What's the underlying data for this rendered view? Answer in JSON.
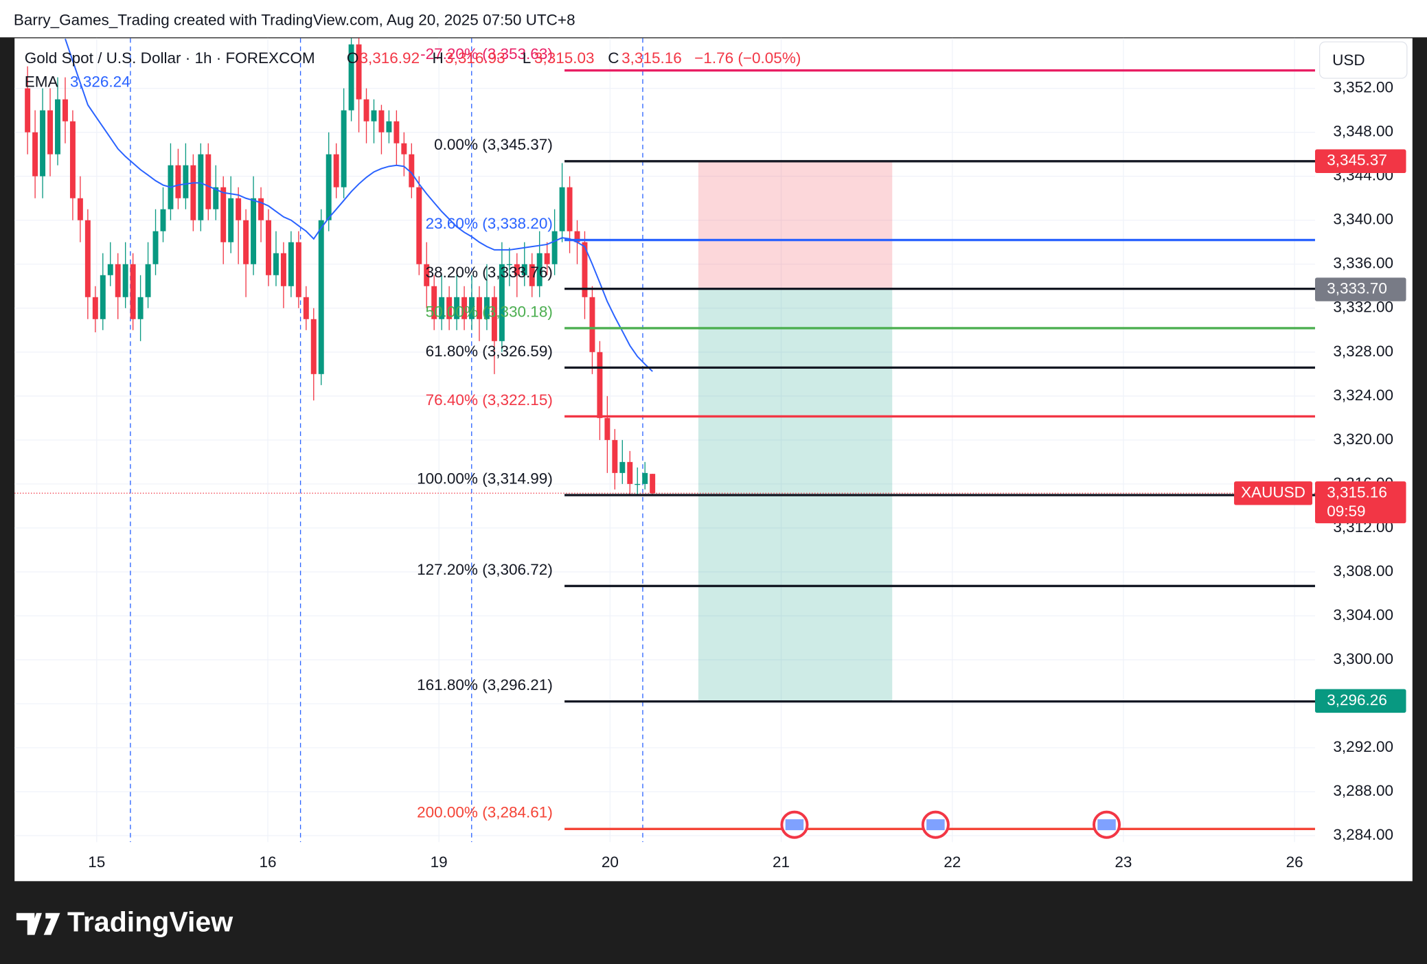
{
  "header": {
    "attribution": "Barry_Games_Trading created with TradingView.com, Aug 20, 2025 07:50 UTC+8",
    "symbol": "Gold Spot / U.S. Dollar · 1h · FOREXCOM",
    "o_label": "O",
    "open": "3,316.92",
    "h_label": "H",
    "high": "3,316.93",
    "l_label": "L",
    "low": "3,315.03",
    "c_label": "C",
    "close": "3,315.16",
    "change": "−1.76 (−0.05%)",
    "ema_label": "EMA",
    "ema_value": "3,326.24"
  },
  "chart_data": {
    "type": "candlestick",
    "currency": "USD",
    "symbol_tag": "XAUUSD",
    "countdown": "09:59",
    "grid": true,
    "colors": {
      "up": "#089981",
      "down": "#f23645",
      "ema": "#2962ff",
      "session": "#2962ff"
    },
    "xlim": [
      -0.48,
      7.12
    ],
    "ylim": [
      3283.42,
      3356.56
    ],
    "xticks": [
      {
        "value": 0,
        "label": "15"
      },
      {
        "value": 1,
        "label": "16"
      },
      {
        "value": 2,
        "label": "19"
      },
      {
        "value": 3,
        "label": "20"
      },
      {
        "value": 4,
        "label": "21"
      },
      {
        "value": 5,
        "label": "22"
      },
      {
        "value": 6,
        "label": "23"
      },
      {
        "value": 7,
        "label": "26"
      }
    ],
    "yticks": [
      {
        "value": 3284,
        "label": "3,284.00"
      },
      {
        "value": 3288,
        "label": "3,288.00"
      },
      {
        "value": 3292,
        "label": "3,292.00"
      },
      {
        "value": 3296,
        "label": "3,296.00"
      },
      {
        "value": 3300,
        "label": "3,300.00"
      },
      {
        "value": 3304,
        "label": "3,304.00"
      },
      {
        "value": 3308,
        "label": "3,308.00"
      },
      {
        "value": 3312,
        "label": "3,312.00"
      },
      {
        "value": 3316,
        "label": "3,316.00"
      },
      {
        "value": 3320,
        "label": "3,320.00"
      },
      {
        "value": 3324,
        "label": "3,324.00"
      },
      {
        "value": 3328,
        "label": "3,328.00"
      },
      {
        "value": 3332,
        "label": "3,332.00"
      },
      {
        "value": 3336,
        "label": "3,336.00"
      },
      {
        "value": 3340,
        "label": "3,340.00"
      },
      {
        "value": 3344,
        "label": "3,344.00"
      },
      {
        "value": 3348,
        "label": "3,348.00"
      },
      {
        "value": 3352,
        "label": "3,352.00"
      }
    ],
    "session_breaks": [
      0.197,
      1.191,
      2.191,
      3.191
    ],
    "x": [
      -0.404,
      -0.36,
      -0.316,
      -0.272,
      -0.228,
      -0.184,
      -0.14,
      -0.096,
      -0.052,
      -0.008,
      0.036,
      0.08,
      0.124,
      0.168,
      0.212,
      0.256,
      0.3,
      0.344,
      0.388,
      0.432,
      0.476,
      0.52,
      0.564,
      0.608,
      0.652,
      0.696,
      0.74,
      0.784,
      0.828,
      0.872,
      0.916,
      0.96,
      1.004,
      1.048,
      1.092,
      1.136,
      1.18,
      1.224,
      1.268,
      1.312,
      1.356,
      1.4,
      1.444,
      1.488,
      1.532,
      1.576,
      1.62,
      1.664,
      1.708,
      1.752,
      1.796,
      1.84,
      1.884,
      1.928,
      1.972,
      2.016,
      2.06,
      2.104,
      2.148,
      2.192,
      2.236,
      2.28,
      2.324,
      2.368,
      2.412,
      2.456,
      2.5,
      2.544,
      2.588,
      2.632,
      2.676,
      2.72,
      2.764,
      2.808,
      2.852,
      2.896,
      2.94,
      2.984,
      3.028,
      3.072,
      3.116,
      3.16,
      3.204,
      3.248
    ],
    "open": [
      3352,
      3348,
      3344,
      3350,
      3346,
      3351,
      3349,
      3342,
      3340,
      3333,
      3331,
      3335,
      3336,
      3333,
      3336,
      3331,
      3333,
      3336,
      3339,
      3341,
      3345,
      3342,
      3345,
      3340,
      3346,
      3341,
      3343,
      3338,
      3342,
      3340,
      3336,
      3342,
      3340,
      3335,
      3337,
      3334,
      3338,
      3333,
      3331,
      3326,
      3340,
      3346,
      3343,
      3350,
      3356,
      3351,
      3349,
      3350,
      3348,
      3349,
      3347,
      3346,
      3343,
      3336,
      3334,
      3331,
      3333,
      3331,
      3333,
      3331,
      3333,
      3331,
      3333,
      3329,
      3336,
      3336,
      3335,
      3336,
      3334,
      3337,
      3336,
      3339,
      3343,
      3339,
      3338,
      3333,
      3328,
      3322,
      3320,
      3317,
      3318,
      3316,
      3316,
      3316.92
    ],
    "high": [
      3354,
      3350,
      3352,
      3352,
      3353,
      3353,
      3350,
      3344,
      3341,
      3334,
      3337,
      3338,
      3337,
      3338,
      3337,
      3335,
      3338,
      3341,
      3343,
      3347,
      3346.5,
      3347,
      3346,
      3347,
      3347,
      3345,
      3344,
      3344,
      3343,
      3341,
      3344,
      3343,
      3341,
      3339,
      3338,
      3339,
      3339,
      3334,
      3332,
      3341,
      3348,
      3347,
      3352,
      3357,
      3357,
      3352,
      3351,
      3350.5,
      3350,
      3350,
      3348,
      3347,
      3344,
      3338,
      3335,
      3335,
      3334,
      3335,
      3334,
      3335,
      3334,
      3336,
      3334,
      3338,
      3337.5,
      3337,
      3338,
      3337,
      3339,
      3338,
      3341,
      3345.2,
      3344,
      3340,
      3339,
      3334,
      3329,
      3324,
      3321,
      3320,
      3319,
      3317.5,
      3318,
      3316.93
    ],
    "low": [
      3346,
      3342,
      3342,
      3344,
      3345,
      3347,
      3340,
      3338,
      3331,
      3329.8,
      3330,
      3334,
      3331,
      3332,
      3330,
      3329,
      3332,
      3335,
      3338,
      3340,
      3341,
      3341,
      3339,
      3339,
      3340,
      3340,
      3336,
      3337,
      3336,
      3333,
      3335,
      3338,
      3334,
      3334,
      3332,
      3333,
      3332,
      3330,
      3323.6,
      3325,
      3339,
      3342,
      3342,
      3349,
      3348,
      3347,
      3347,
      3346,
      3347,
      3345,
      3344,
      3342,
      3335,
      3332,
      3330,
      3330,
      3330,
      3330,
      3330,
      3330,
      3329,
      3330,
      3326,
      3328,
      3334,
      3333,
      3334,
      3333,
      3333,
      3335,
      3335,
      3338,
      3337,
      3336,
      3331,
      3326,
      3320,
      3317,
      3315.5,
      3316,
      3315,
      3315,
      3315.5,
      3315.03
    ],
    "close": [
      3348,
      3344,
      3350,
      3346,
      3351,
      3349,
      3342,
      3340,
      3333,
      3331,
      3335,
      3336,
      3333,
      3336,
      3331,
      3333,
      3336,
      3339,
      3341,
      3345,
      3342,
      3345,
      3340,
      3346,
      3341,
      3343,
      3338,
      3342,
      3340,
      3336,
      3342,
      3340,
      3335,
      3337,
      3334,
      3338,
      3333,
      3331,
      3326,
      3340,
      3346,
      3343,
      3350,
      3356,
      3351,
      3349,
      3350,
      3348,
      3349,
      3347,
      3346,
      3343,
      3336,
      3334,
      3331,
      3333,
      3331,
      3333,
      3331,
      3333,
      3331,
      3333,
      3329,
      3336,
      3336,
      3335,
      3336,
      3334,
      3337,
      3336,
      3339,
      3343,
      3339,
      3338,
      3333,
      3328,
      3322,
      3320,
      3317,
      3318,
      3316,
      3316,
      3317,
      3315.16
    ],
    "ema": [
      null,
      null,
      null,
      null,
      null,
      3356.5,
      3354.5,
      3352.5,
      3350.5,
      3349.5,
      3348.5,
      3347.5,
      3346.5,
      3345.8,
      3345.2,
      3344.6,
      3344.1,
      3343.6,
      3343.2,
      3343,
      3343.2,
      3343.3,
      3343.4,
      3343.4,
      3343.1,
      3342.8,
      3342.5,
      3342.4,
      3342.3,
      3342,
      3341.8,
      3341.6,
      3341.3,
      3340.8,
      3340.3,
      3340,
      3339.5,
      3339,
      3338.3,
      3339.3,
      3340.2,
      3341,
      3341.8,
      3342.6,
      3343.3,
      3343.9,
      3344.4,
      3344.7,
      3344.9,
      3345,
      3344.9,
      3344.3,
      3343.3,
      3342.4,
      3341.6,
      3340.8,
      3340.1,
      3339.4,
      3338.9,
      3338.5,
      3338,
      3337.6,
      3337.3,
      3337.3,
      3337.3,
      3337.4,
      3337.5,
      3337.6,
      3337.7,
      3337.8,
      3338.1,
      3338.4,
      3338.3,
      3338,
      3337.6,
      3336,
      3334.3,
      3332.6,
      3331.2,
      3329.9,
      3328.6,
      3327.6,
      3326.9,
      3326.24
    ],
    "last_price": {
      "value": 3315.16,
      "label": "3,315.16"
    },
    "fib": {
      "x_start": 2.734,
      "levels": [
        {
          "label": "-27.20% (3,353.63)",
          "value": 3353.63,
          "color": "#e91e63"
        },
        {
          "label": "0.00% (3,345.37)",
          "value": 3345.37,
          "color": "#131722"
        },
        {
          "label": "23.60% (3,338.20)",
          "value": 3338.2,
          "color": "#2962ff"
        },
        {
          "label": "38.20% (3,333.76)",
          "value": 3333.76,
          "color": "#131722"
        },
        {
          "label": "50.00% (3,330.18)",
          "value": 3330.18,
          "color": "#4caf50"
        },
        {
          "label": "61.80% (3,326.59)",
          "value": 3326.59,
          "color": "#131722"
        },
        {
          "label": "76.40% (3,322.15)",
          "value": 3322.15,
          "color": "#f23645"
        },
        {
          "label": "100.00% (3,314.99)",
          "value": 3314.99,
          "color": "#131722"
        },
        {
          "label": "127.20% (3,306.72)",
          "value": 3306.72,
          "color": "#131722"
        },
        {
          "label": "161.80% (3,296.21)",
          "value": 3296.21,
          "color": "#131722"
        },
        {
          "label": "200.00% (3,284.61)",
          "value": 3284.61,
          "color": "#f44336"
        }
      ]
    },
    "position": {
      "x": [
        3.516,
        4.649
      ],
      "stop": {
        "value": 3345.37,
        "label": "3,345.37"
      },
      "entry": {
        "value": 3333.7,
        "label": "3,333.70"
      },
      "target": {
        "value": 3296.26,
        "label": "3,296.26"
      }
    }
  },
  "footer": {
    "logo_text": "TradingView"
  }
}
